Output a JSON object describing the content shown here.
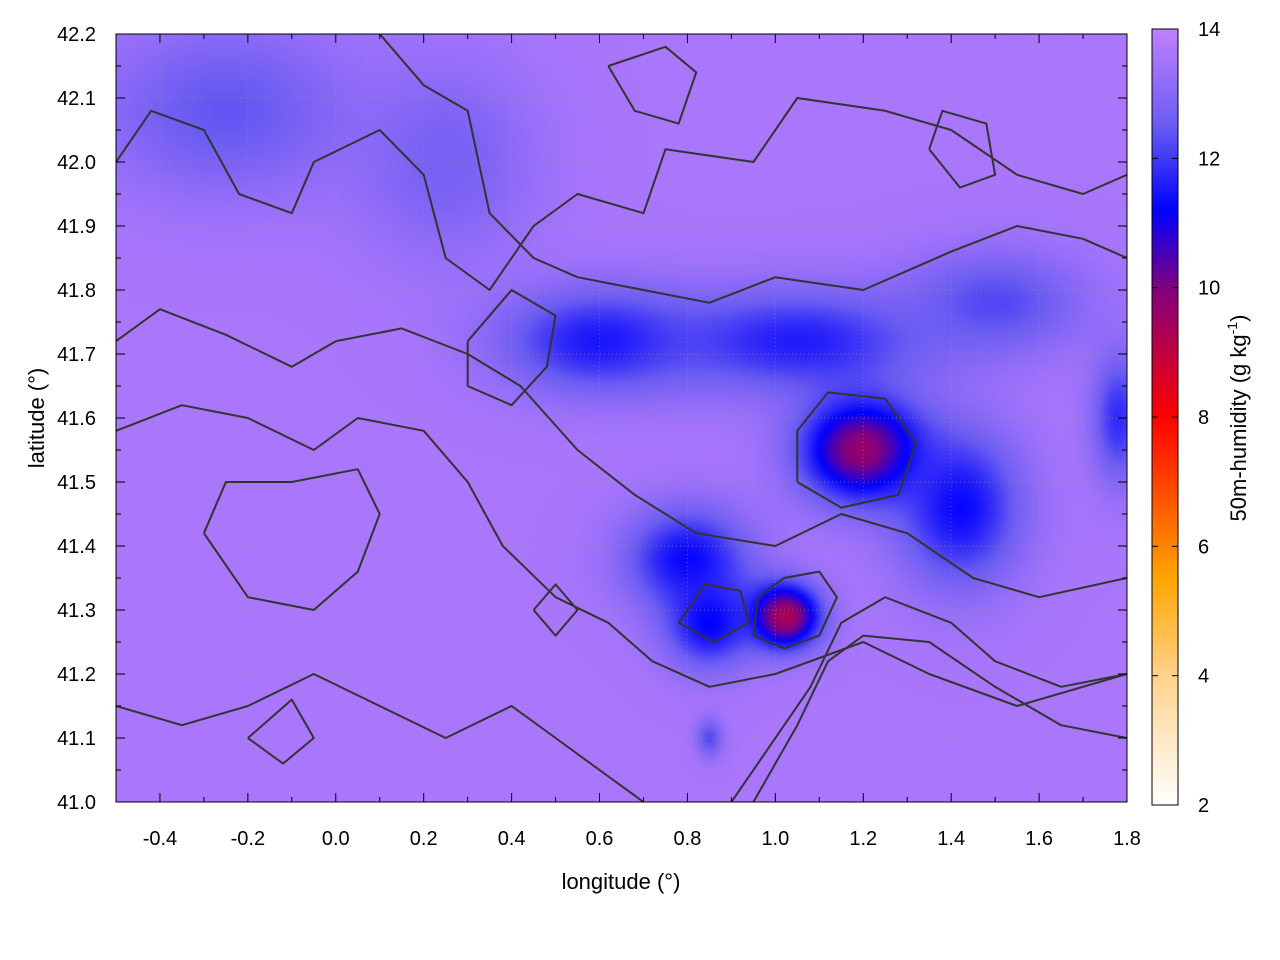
{
  "chart_data": {
    "type": "heatmap",
    "title": "",
    "xlabel": "longitude (°)",
    "ylabel": "latitude (°)",
    "colorbar_label": "50m-humidity (g kg",
    "colorbar_label_sup": "-1",
    "colorbar_label_end": ")",
    "xlim": [
      -0.5,
      1.8
    ],
    "ylim": [
      41.0,
      42.2
    ],
    "clim": [
      2,
      14
    ],
    "x_ticks": [
      "-0.4",
      "-0.2",
      "0.0",
      "0.2",
      "0.4",
      "0.6",
      "0.8",
      "1.0",
      "1.2",
      "1.4",
      "1.6",
      "1.8"
    ],
    "x_tick_values": [
      -0.4,
      -0.2,
      0.0,
      0.2,
      0.4,
      0.6,
      0.8,
      1.0,
      1.2,
      1.4,
      1.6,
      1.8
    ],
    "y_ticks": [
      "41.0",
      "41.1",
      "41.2",
      "41.3",
      "41.4",
      "41.5",
      "41.6",
      "41.7",
      "41.8",
      "41.9",
      "42.0",
      "42.1",
      "42.2"
    ],
    "y_tick_values": [
      41.0,
      41.1,
      41.2,
      41.3,
      41.4,
      41.5,
      41.6,
      41.7,
      41.8,
      41.9,
      42.0,
      42.1,
      42.2
    ],
    "colorbar_ticks": [
      "2",
      "4",
      "6",
      "8",
      "10",
      "12",
      "14"
    ],
    "colorbar_tick_values": [
      2,
      4,
      6,
      8,
      10,
      12,
      14
    ],
    "grid": true,
    "colormap": [
      {
        "value": 2,
        "color": "#ffffff"
      },
      {
        "value": 4,
        "color": "#ffd28a"
      },
      {
        "value": 5.5,
        "color": "#ffa500"
      },
      {
        "value": 8,
        "color": "#ff0000"
      },
      {
        "value": 10,
        "color": "#800080"
      },
      {
        "value": 11.2,
        "color": "#0000ff"
      },
      {
        "value": 12.5,
        "color": "#6a5cf2"
      },
      {
        "value": 14,
        "color": "#c080ff"
      }
    ],
    "background_value": 13.6,
    "contour_color": "#333333",
    "humidity_features": [
      {
        "lon": -0.25,
        "lat": 42.08,
        "value": 12.4,
        "sigma_lon": 0.28,
        "sigma_lat": 0.13
      },
      {
        "lon": 0.25,
        "lat": 42.0,
        "value": 12.7,
        "sigma_lon": 0.2,
        "sigma_lat": 0.15
      },
      {
        "lon": 0.6,
        "lat": 41.72,
        "value": 11.5,
        "sigma_lon": 0.22,
        "sigma_lat": 0.08
      },
      {
        "lon": 1.05,
        "lat": 41.72,
        "value": 11.6,
        "sigma_lon": 0.3,
        "sigma_lat": 0.08
      },
      {
        "lon": 1.5,
        "lat": 41.78,
        "value": 12.2,
        "sigma_lon": 0.2,
        "sigma_lat": 0.08
      },
      {
        "lon": 1.2,
        "lat": 41.55,
        "value": 9.6,
        "sigma_lon": 0.14,
        "sigma_lat": 0.08
      },
      {
        "lon": 1.42,
        "lat": 41.46,
        "value": 11.3,
        "sigma_lon": 0.14,
        "sigma_lat": 0.12
      },
      {
        "lon": 0.8,
        "lat": 41.38,
        "value": 11.3,
        "sigma_lon": 0.14,
        "sigma_lat": 0.08
      },
      {
        "lon": 1.02,
        "lat": 41.29,
        "value": 9.2,
        "sigma_lon": 0.08,
        "sigma_lat": 0.05
      },
      {
        "lon": 0.85,
        "lat": 41.28,
        "value": 11.2,
        "sigma_lon": 0.1,
        "sigma_lat": 0.07
      },
      {
        "lon": 1.78,
        "lat": 41.6,
        "value": 11.8,
        "sigma_lon": 0.06,
        "sigma_lat": 0.1
      },
      {
        "lon": 0.85,
        "lat": 41.1,
        "value": 12.2,
        "sigma_lon": 0.03,
        "sigma_lat": 0.03
      }
    ],
    "contours": [
      [
        [
          -0.5,
          42.0
        ],
        [
          -0.42,
          42.08
        ],
        [
          -0.3,
          42.05
        ],
        [
          -0.22,
          41.95
        ],
        [
          -0.1,
          41.92
        ],
        [
          -0.05,
          42.0
        ],
        [
          0.1,
          42.05
        ],
        [
          0.2,
          41.98
        ],
        [
          0.25,
          41.85
        ],
        [
          0.35,
          41.8
        ],
        [
          0.45,
          41.9
        ],
        [
          0.55,
          41.95
        ],
        [
          0.7,
          41.92
        ],
        [
          0.75,
          42.02
        ],
        [
          0.95,
          42.0
        ],
        [
          1.05,
          42.1
        ],
        [
          1.25,
          42.08
        ],
        [
          1.4,
          42.05
        ],
        [
          1.55,
          41.98
        ],
        [
          1.7,
          41.95
        ],
        [
          1.8,
          41.98
        ]
      ],
      [
        [
          0.1,
          42.2
        ],
        [
          0.2,
          42.12
        ],
        [
          0.3,
          42.08
        ],
        [
          0.35,
          41.92
        ],
        [
          0.45,
          41.85
        ],
        [
          0.55,
          41.82
        ],
        [
          0.7,
          41.8
        ],
        [
          0.85,
          41.78
        ],
        [
          1.0,
          41.82
        ],
        [
          1.2,
          41.8
        ],
        [
          1.4,
          41.86
        ],
        [
          1.55,
          41.9
        ],
        [
          1.7,
          41.88
        ],
        [
          1.8,
          41.85
        ]
      ],
      [
        [
          -0.5,
          41.72
        ],
        [
          -0.4,
          41.77
        ],
        [
          -0.25,
          41.73
        ],
        [
          -0.1,
          41.68
        ],
        [
          0.0,
          41.72
        ],
        [
          0.15,
          41.74
        ],
        [
          0.3,
          41.7
        ],
        [
          0.42,
          41.65
        ],
        [
          0.55,
          41.55
        ],
        [
          0.68,
          41.48
        ],
        [
          0.82,
          41.42
        ],
        [
          1.0,
          41.4
        ],
        [
          1.15,
          41.45
        ],
        [
          1.3,
          41.42
        ],
        [
          1.45,
          41.35
        ],
        [
          1.6,
          41.32
        ],
        [
          1.8,
          41.35
        ]
      ],
      [
        [
          -0.5,
          41.58
        ],
        [
          -0.35,
          41.62
        ],
        [
          -0.2,
          41.6
        ],
        [
          -0.05,
          41.55
        ],
        [
          0.05,
          41.6
        ],
        [
          0.2,
          41.58
        ],
        [
          0.3,
          41.5
        ],
        [
          0.38,
          41.4
        ],
        [
          0.5,
          41.32
        ],
        [
          0.62,
          41.28
        ],
        [
          0.72,
          41.22
        ],
        [
          0.85,
          41.18
        ],
        [
          1.0,
          41.2
        ],
        [
          1.2,
          41.25
        ],
        [
          1.35,
          41.2
        ],
        [
          1.55,
          41.15
        ],
        [
          1.8,
          41.2
        ]
      ],
      [
        [
          -0.3,
          41.42
        ],
        [
          -0.2,
          41.32
        ],
        [
          -0.05,
          41.3
        ],
        [
          0.05,
          41.36
        ],
        [
          0.1,
          41.45
        ],
        [
          0.05,
          41.52
        ],
        [
          -0.1,
          41.5
        ],
        [
          -0.25,
          41.5
        ],
        [
          -0.3,
          41.42
        ]
      ],
      [
        [
          -0.5,
          41.15
        ],
        [
          -0.35,
          41.12
        ],
        [
          -0.2,
          41.15
        ],
        [
          -0.05,
          41.2
        ],
        [
          0.1,
          41.15
        ],
        [
          0.25,
          41.1
        ],
        [
          0.4,
          41.15
        ],
        [
          0.5,
          41.1
        ],
        [
          0.6,
          41.05
        ],
        [
          0.7,
          41.0
        ]
      ],
      [
        [
          0.9,
          41.0
        ],
        [
          0.98,
          41.08
        ],
        [
          1.08,
          41.18
        ],
        [
          1.15,
          41.28
        ],
        [
          1.25,
          41.32
        ],
        [
          1.4,
          41.28
        ],
        [
          1.5,
          41.22
        ],
        [
          1.65,
          41.18
        ],
        [
          1.8,
          41.2
        ]
      ],
      [
        [
          0.95,
          41.0
        ],
        [
          1.05,
          41.12
        ],
        [
          1.12,
          41.22
        ],
        [
          1.2,
          41.26
        ],
        [
          1.35,
          41.25
        ],
        [
          1.5,
          41.18
        ],
        [
          1.65,
          41.12
        ],
        [
          1.8,
          41.1
        ]
      ],
      [
        [
          0.95,
          41.26
        ],
        [
          1.02,
          41.24
        ],
        [
          1.1,
          41.26
        ],
        [
          1.14,
          41.32
        ],
        [
          1.1,
          41.36
        ],
        [
          1.02,
          41.35
        ],
        [
          0.96,
          41.32
        ],
        [
          0.95,
          41.26
        ]
      ],
      [
        [
          0.78,
          41.28
        ],
        [
          0.86,
          41.25
        ],
        [
          0.94,
          41.28
        ],
        [
          0.92,
          41.33
        ],
        [
          0.84,
          41.34
        ],
        [
          0.78,
          41.28
        ]
      ],
      [
        [
          1.05,
          41.5
        ],
        [
          1.15,
          41.46
        ],
        [
          1.28,
          41.48
        ],
        [
          1.32,
          41.56
        ],
        [
          1.25,
          41.63
        ],
        [
          1.12,
          41.64
        ],
        [
          1.05,
          41.58
        ],
        [
          1.05,
          41.5
        ]
      ],
      [
        [
          0.3,
          41.72
        ],
        [
          0.4,
          41.8
        ],
        [
          0.5,
          41.76
        ],
        [
          0.48,
          41.68
        ],
        [
          0.4,
          41.62
        ],
        [
          0.3,
          41.65
        ],
        [
          0.3,
          41.72
        ]
      ],
      [
        [
          0.62,
          42.15
        ],
        [
          0.68,
          42.08
        ],
        [
          0.78,
          42.06
        ],
        [
          0.82,
          42.14
        ],
        [
          0.75,
          42.18
        ],
        [
          0.62,
          42.15
        ]
      ],
      [
        [
          1.35,
          42.02
        ],
        [
          1.42,
          41.96
        ],
        [
          1.5,
          41.98
        ],
        [
          1.48,
          42.06
        ],
        [
          1.38,
          42.08
        ],
        [
          1.35,
          42.02
        ]
      ],
      [
        [
          -0.2,
          41.1
        ],
        [
          -0.12,
          41.06
        ],
        [
          -0.05,
          41.1
        ],
        [
          -0.1,
          41.16
        ],
        [
          -0.2,
          41.1
        ]
      ],
      [
        [
          0.45,
          41.3
        ],
        [
          0.5,
          41.26
        ],
        [
          0.55,
          41.3
        ],
        [
          0.5,
          41.34
        ],
        [
          0.45,
          41.3
        ]
      ]
    ]
  }
}
